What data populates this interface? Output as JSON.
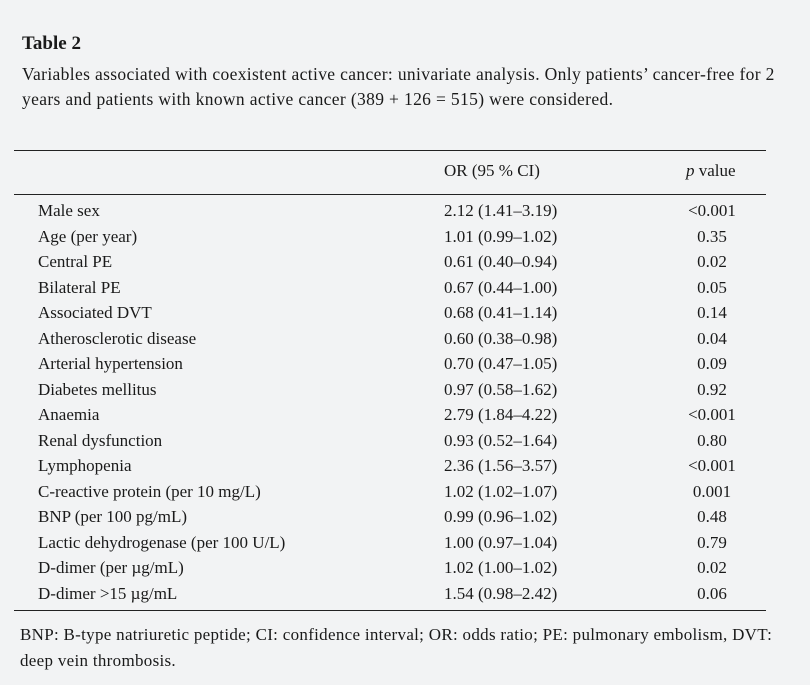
{
  "table": {
    "title": "Table 2",
    "caption": "Variables associated with coexistent active cancer: univariate analysis. Only patients’ cancer-free for 2 years and patients with known active cancer (389 + 126 = 515) were considered.",
    "headers": {
      "variable": "",
      "or": "OR (95 % CI)",
      "p_italic": "p",
      "p_rest": " value"
    },
    "rows": [
      {
        "variable": "Male sex",
        "or": "2.12 (1.41–3.19)",
        "p": "<0.001"
      },
      {
        "variable": "Age (per year)",
        "or": "1.01 (0.99–1.02)",
        "p": "0.35"
      },
      {
        "variable": "Central PE",
        "or": "0.61 (0.40–0.94)",
        "p": "0.02"
      },
      {
        "variable": "Bilateral PE",
        "or": "0.67 (0.44–1.00)",
        "p": "0.05"
      },
      {
        "variable": "Associated DVT",
        "or": "0.68 (0.41–1.14)",
        "p": "0.14"
      },
      {
        "variable": "Atherosclerotic disease",
        "or": "0.60 (0.38–0.98)",
        "p": "0.04"
      },
      {
        "variable": "Arterial hypertension",
        "or": "0.70 (0.47–1.05)",
        "p": "0.09"
      },
      {
        "variable": "Diabetes mellitus",
        "or": "0.97 (0.58–1.62)",
        "p": "0.92"
      },
      {
        "variable": "Anaemia",
        "or": "2.79 (1.84–4.22)",
        "p": "<0.001"
      },
      {
        "variable": "Renal dysfunction",
        "or": "0.93 (0.52–1.64)",
        "p": "0.80"
      },
      {
        "variable": "Lymphopenia",
        "or": "2.36 (1.56–3.57)",
        "p": "<0.001"
      },
      {
        "variable": "C-reactive protein (per 10 mg/L)",
        "or": "1.02 (1.02–1.07)",
        "p": "0.001"
      },
      {
        "variable": "BNP (per 100 pg/mL)",
        "or": "0.99 (0.96–1.02)",
        "p": "0.48"
      },
      {
        "variable": "Lactic dehydrogenase (per 100 U/L)",
        "or": "1.00 (0.97–1.04)",
        "p": "0.79"
      },
      {
        "variable": "D-dimer (per µg/mL)",
        "or": "1.02 (1.00–1.02)",
        "p": "0.02"
      },
      {
        "variable": "D-dimer >15 µg/mL",
        "or": "1.54 (0.98–2.42)",
        "p": "0.06"
      }
    ],
    "footnote": "BNP: B-type natriuretic peptide; CI: confidence interval; OR: odds ratio; PE: pulmonary embolism, DVT: deep vein thrombosis."
  }
}
